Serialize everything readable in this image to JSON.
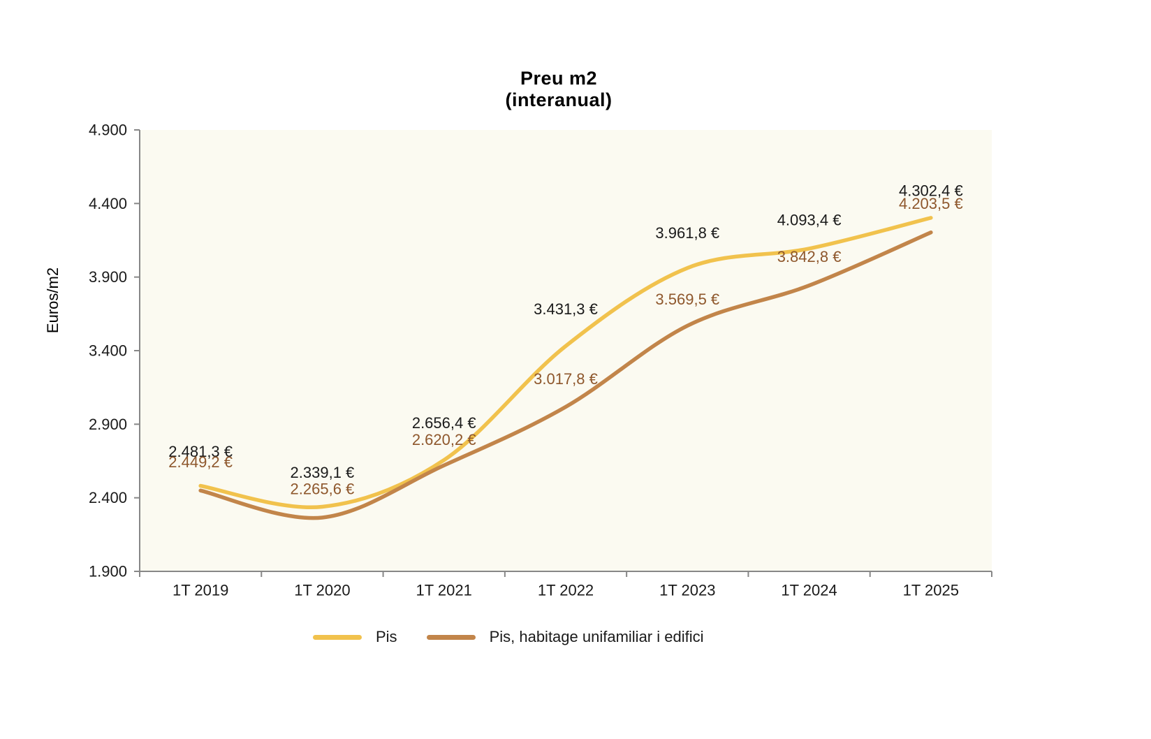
{
  "title": {
    "line1": "Preu m2",
    "line2": "(interanual)"
  },
  "y_axis": {
    "title": "Euros/m2"
  },
  "legend": {
    "items": [
      {
        "label": "Pis",
        "color": "#F1C24D"
      },
      {
        "label": "Pis, habitage unifamiliar i edifici",
        "color": "#C2854A"
      }
    ]
  },
  "chart_data": {
    "type": "line",
    "smooth": true,
    "grid": false,
    "legend_position": "bottom",
    "plot_bg": "#FBFAF1",
    "axis_color": "#878787",
    "categories": [
      "1T 2019",
      "1T 2020",
      "1T 2021",
      "1T 2022",
      "1T 2023",
      "1T 2024",
      "1T 2025"
    ],
    "ylim": [
      1900,
      4900
    ],
    "y_ticks": [
      1900,
      2400,
      2900,
      3400,
      3900,
      4400,
      4900
    ],
    "y_tick_labels": [
      "1.900",
      "2.400",
      "2.900",
      "3.400",
      "3.900",
      "4.400",
      "4.900"
    ],
    "ylabel": "Euros/m2",
    "series": [
      {
        "name": "Pis",
        "color": "#F1C24D",
        "label_color": "#1a1a1a",
        "values": [
          2481.3,
          2339.1,
          2656.4,
          3431.3,
          3961.8,
          4093.4,
          4302.4
        ],
        "labels": [
          "2.481,3 €",
          "2.339,1 €",
          "2.656,4 €",
          "3.431,3 €",
          "3.961,8 €",
          "4.093,4 €",
          "4.302,4 €"
        ],
        "label_dy": [
          -49,
          -49,
          -53,
          -53,
          -50,
          -41,
          -39
        ]
      },
      {
        "name": "Pis, habitage unifamiliar i edifici",
        "color": "#C2854A",
        "label_color": "#8E572C",
        "values": [
          2449.2,
          2265.6,
          2620.2,
          3017.8,
          3569.5,
          3842.8,
          4203.5
        ],
        "labels": [
          "2.449,2 €",
          "2.265,6 €",
          "2.620,2 €",
          "3.017,8 €",
          "3.569,5 €",
          "3.842,8 €",
          "4.203,5 €"
        ],
        "label_dy": [
          -41,
          -41,
          -37,
          -40,
          -38,
          -41,
          -41
        ]
      }
    ]
  }
}
